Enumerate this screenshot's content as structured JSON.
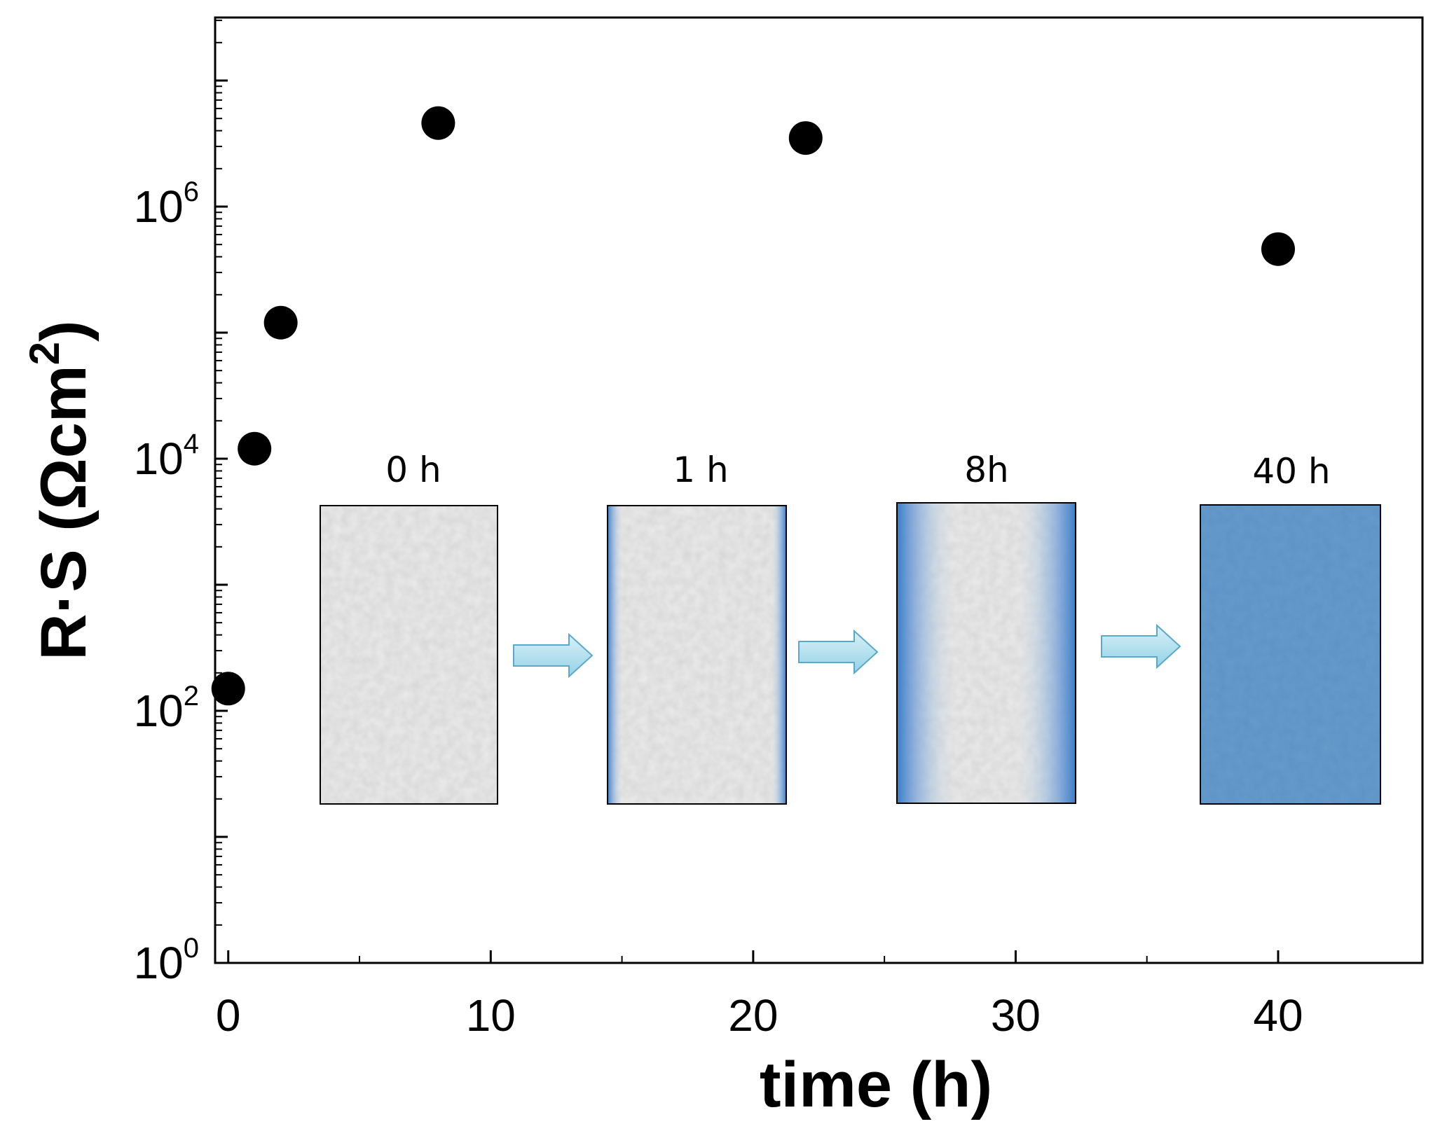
{
  "chart_data": {
    "type": "scatter",
    "title": "",
    "xlabel": "time (h)",
    "ylabel": "R·S (Ωcm²)",
    "ylabel_parts": {
      "main": "R·S (Ωcm",
      "sup": "2",
      "close": ")"
    },
    "xlim": [
      -0.5,
      45.5
    ],
    "ylim": [
      1,
      31622777
    ],
    "yscale": "log",
    "x_ticks": [
      0,
      10,
      20,
      30,
      40
    ],
    "x_tick_labels": [
      "0",
      "10",
      "20",
      "30",
      "40"
    ],
    "x_minor_ticks": [
      5,
      15,
      25,
      35
    ],
    "y_ticks": [
      {
        "value": 1,
        "base": "10",
        "exp": "0"
      },
      {
        "value": 100,
        "base": "10",
        "exp": "2"
      },
      {
        "value": 10000,
        "base": "10",
        "exp": "4"
      },
      {
        "value": 1000000,
        "base": "10",
        "exp": "6"
      }
    ],
    "series": [
      {
        "name": "R·S",
        "marker": "filled-circle",
        "color": "#000000",
        "points": [
          {
            "x": 0,
            "y": 150
          },
          {
            "x": 1,
            "y": 12000
          },
          {
            "x": 2,
            "y": 120000
          },
          {
            "x": 8,
            "y": 4600000
          },
          {
            "x": 22,
            "y": 3500000
          },
          {
            "x": 40,
            "y": 460000
          }
        ]
      }
    ],
    "grid": false,
    "legend": "none"
  },
  "inset": {
    "stages": [
      {
        "label": "0 h",
        "state": "unpenetrated"
      },
      {
        "label": "1 h",
        "state": "edges"
      },
      {
        "label": "8h",
        "state": "deep-edges"
      },
      {
        "label": "40 h",
        "state": "full"
      }
    ],
    "colors": {
      "pore_gray": "#e6e6e6",
      "blue_dark": "#3b7dc8",
      "blue_full": "#5a92c6",
      "arrow_fill": "#a9dcec",
      "arrow_stroke": "#5ba9c9"
    }
  }
}
